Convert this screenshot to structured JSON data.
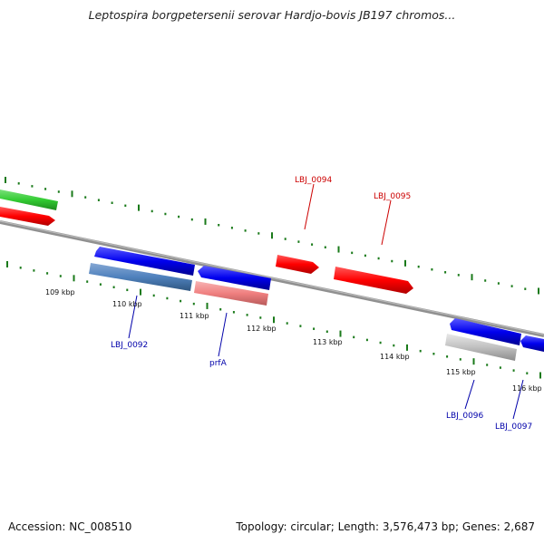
{
  "title": "Leptospira borgpetersenii serovar Hardjo-bovis JB197 chromos...",
  "footer": {
    "accession": "Accession: NC_008510",
    "summary": "Topology: circular; Length: 3,576,473 bp; Genes: 2,687"
  },
  "scale_ticks": [
    {
      "label": "109 kbp"
    },
    {
      "label": "110 kbp"
    },
    {
      "label": "111 kbp"
    },
    {
      "label": "112 kbp"
    },
    {
      "label": "113 kbp"
    },
    {
      "label": "114 kbp"
    },
    {
      "label": "115 kbp"
    },
    {
      "label": "116 kbp"
    }
  ],
  "gene_labels": [
    {
      "text": "LBJ_0094",
      "color": "#cc0000"
    },
    {
      "text": "LBJ_0095",
      "color": "#cc0000"
    },
    {
      "text": "LBJ_0092",
      "color": "#0000aa"
    },
    {
      "text": "prfA",
      "color": "#0000aa"
    },
    {
      "text": "LBJ_0096",
      "color": "#0000aa"
    },
    {
      "text": "LBJ_0097",
      "color": "#0000aa"
    }
  ],
  "colors": {
    "backbone": "#808080",
    "forward_cds": "#ff0000",
    "reverse_cds": "#0000ee",
    "rna_gene": "#33cc33",
    "pseudo_reverse": "#4f81bd",
    "pseudo_forward": "#f08080",
    "other_feature": "#c0c0c0",
    "gc_dots": "#1a7a1a"
  }
}
